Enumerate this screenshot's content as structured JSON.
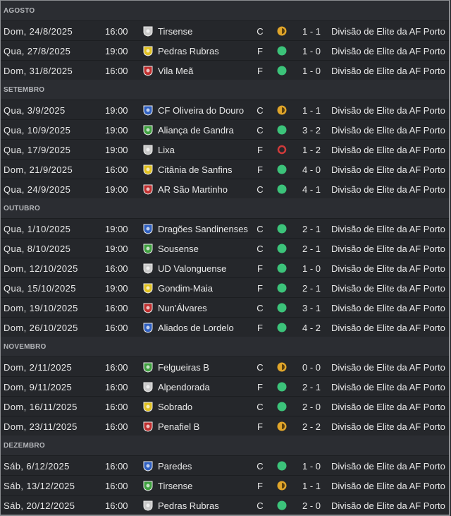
{
  "months": [
    {
      "name": "AGOSTO",
      "matches": [
        {
          "date": "Dom, 24/8/2025",
          "time": "16:00",
          "opponent": "Tirsense",
          "venue": "C",
          "score": "1 - 1",
          "competition": "Divisão de Elite da AF Porto"
        },
        {
          "date": "Qua, 27/8/2025",
          "time": "19:00",
          "opponent": "Pedras Rubras",
          "venue": "F",
          "score": "1 - 0",
          "competition": "Divisão de Elite da AF Porto"
        },
        {
          "date": "Dom, 31/8/2025",
          "time": "16:00",
          "opponent": "Vila Meã",
          "venue": "F",
          "score": "1 - 0",
          "competition": "Divisão de Elite da AF Porto"
        }
      ]
    },
    {
      "name": "SETEMBRO",
      "matches": [
        {
          "date": "Qua, 3/9/2025",
          "time": "19:00",
          "opponent": "CF Oliveira do Douro",
          "venue": "C",
          "score": "1 - 1",
          "competition": "Divisão de Elite da AF Porto"
        },
        {
          "date": "Qua, 10/9/2025",
          "time": "19:00",
          "opponent": "Aliança de Gandra",
          "venue": "C",
          "score": "3 - 2",
          "competition": "Divisão de Elite da AF Porto"
        },
        {
          "date": "Qua, 17/9/2025",
          "time": "19:00",
          "opponent": "Lixa",
          "venue": "F",
          "score": "1 - 2",
          "competition": "Divisão de Elite da AF Porto"
        },
        {
          "date": "Dom, 21/9/2025",
          "time": "16:00",
          "opponent": "Citânia de Sanfins",
          "venue": "F",
          "score": "4 - 0",
          "competition": "Divisão de Elite da AF Porto"
        },
        {
          "date": "Qua, 24/9/2025",
          "time": "19:00",
          "opponent": "AR São Martinho",
          "venue": "C",
          "score": "4 - 1",
          "competition": "Divisão de Elite da AF Porto"
        }
      ]
    },
    {
      "name": "OUTUBRO",
      "matches": [
        {
          "date": "Qua, 1/10/2025",
          "time": "19:00",
          "opponent": "Dragões Sandinenses",
          "venue": "C",
          "score": "2 - 1",
          "competition": "Divisão de Elite da AF Porto"
        },
        {
          "date": "Qua, 8/10/2025",
          "time": "19:00",
          "opponent": "Sousense",
          "venue": "C",
          "score": "2 - 1",
          "competition": "Divisão de Elite da AF Porto"
        },
        {
          "date": "Dom, 12/10/2025",
          "time": "16:00",
          "opponent": "UD Valonguense",
          "venue": "F",
          "score": "1 - 0",
          "competition": "Divisão de Elite da AF Porto"
        },
        {
          "date": "Qua, 15/10/2025",
          "time": "19:00",
          "opponent": "Gondim-Maia",
          "venue": "F",
          "score": "2 - 1",
          "competition": "Divisão de Elite da AF Porto"
        },
        {
          "date": "Dom, 19/10/2025",
          "time": "16:00",
          "opponent": "Nun'Álvares",
          "venue": "C",
          "score": "3 - 1",
          "competition": "Divisão de Elite da AF Porto"
        },
        {
          "date": "Dom, 26/10/2025",
          "time": "16:00",
          "opponent": "Aliados de Lordelo",
          "venue": "F",
          "score": "4 - 2",
          "competition": "Divisão de Elite da AF Porto"
        }
      ]
    },
    {
      "name": "NOVEMBRO",
      "matches": [
        {
          "date": "Dom, 2/11/2025",
          "time": "16:00",
          "opponent": "Felgueiras B",
          "venue": "C",
          "score": "0 - 0",
          "competition": "Divisão de Elite da AF Porto"
        },
        {
          "date": "Dom, 9/11/2025",
          "time": "16:00",
          "opponent": "Alpendorada",
          "venue": "F",
          "score": "2 - 1",
          "competition": "Divisão de Elite da AF Porto"
        },
        {
          "date": "Dom, 16/11/2025",
          "time": "16:00",
          "opponent": "Sobrado",
          "venue": "C",
          "score": "2 - 0",
          "competition": "Divisão de Elite da AF Porto"
        },
        {
          "date": "Dom, 23/11/2025",
          "time": "16:00",
          "opponent": "Penafiel B",
          "venue": "F",
          "score": "2 - 2",
          "competition": "Divisão de Elite da AF Porto"
        }
      ]
    },
    {
      "name": "DEZEMBRO",
      "matches": [
        {
          "date": "Sáb, 6/12/2025",
          "time": "16:00",
          "opponent": "Paredes",
          "venue": "C",
          "score": "1 - 0",
          "competition": "Divisão de Elite da AF Porto"
        },
        {
          "date": "Sáb, 13/12/2025",
          "time": "16:00",
          "opponent": "Tirsense",
          "venue": "F",
          "score": "1 - 1",
          "competition": "Divisão de Elite da AF Porto"
        },
        {
          "date": "Sáb, 20/12/2025",
          "time": "16:00",
          "opponent": "Pedras Rubras",
          "venue": "C",
          "score": "2 - 0",
          "competition": "Divisão de Elite da AF Porto"
        }
      ]
    }
  ]
}
